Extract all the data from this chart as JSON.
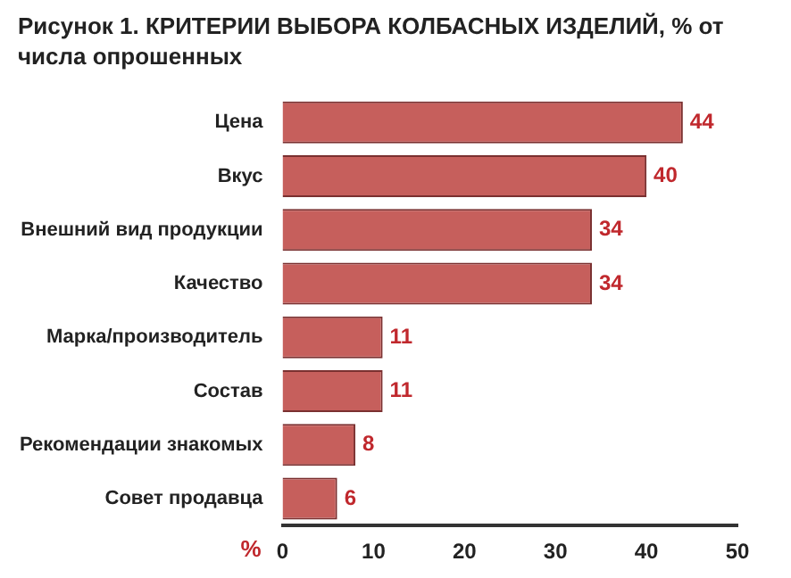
{
  "chart_data": {
    "type": "bar",
    "orientation": "horizontal",
    "title": "Рисунок 1. КРИТЕРИИ ВЫБОРА КОЛБАСНЫХ ИЗДЕЛИЙ, % от числа опрошенных",
    "categories": [
      "Цена",
      "Вкус",
      "Внешний вид продукции",
      "Качество",
      "Марка/производитель",
      "Состав",
      "Рекомендации знакомых",
      "Совет продавца"
    ],
    "values": [
      44,
      40,
      34,
      34,
      11,
      11,
      8,
      6
    ],
    "color": "#c65f5c",
    "xlabel": "%",
    "xlim": [
      0,
      50
    ],
    "xticks": [
      0,
      10,
      20,
      30,
      40,
      50
    ],
    "data_labels": true,
    "grid": false,
    "legend": false
  }
}
